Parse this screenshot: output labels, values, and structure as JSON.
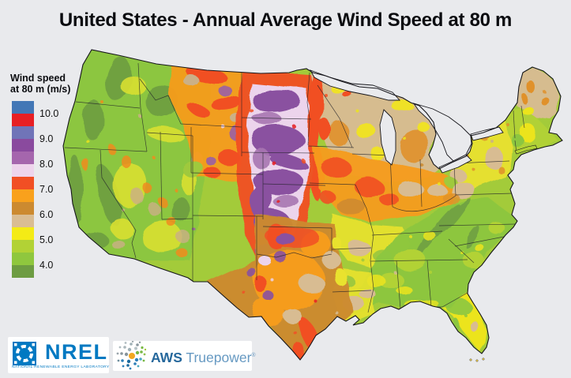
{
  "title": "United States - Annual Average Wind Speed at 80 m",
  "colors": {
    "background": "#e9eaed",
    "title_text": "#0b0c10",
    "map_outline": "#15151a"
  },
  "legend": {
    "title_line1": "Wind speed",
    "title_line2": "at 80 m (m/s)",
    "swatches": [
      "#4377b6",
      "#e71f24",
      "#7074b8",
      "#8a4a9e",
      "#a566ad",
      "#eed4ec",
      "#f14f24",
      "#f9a11c",
      "#cc8a30",
      "#dabd93",
      "#f4eb15",
      "#b2d235",
      "#8fc73e",
      "#6d9c42"
    ],
    "labels": [
      "10.0",
      "9.0",
      "8.0",
      "7.0",
      "6.0",
      "5.0",
      "4.0"
    ]
  },
  "logos": {
    "nrel": {
      "wordmark": "NREL",
      "tagline": "NATIONAL RENEWABLE ENERGY LABORATORY",
      "brand_color": "#0079c2"
    },
    "aws": {
      "wordmark_bold": "AWS",
      "wordmark_light": "Truepower",
      "registered": "®",
      "bold_color": "#26689c",
      "light_color": "#6699c2"
    }
  }
}
